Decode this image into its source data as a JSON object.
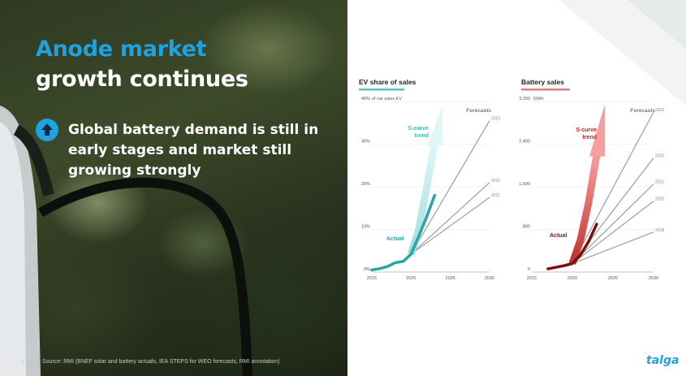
{
  "slide": {
    "title_line1": "Anode market",
    "title_line2": "growth continues",
    "bullet_text": "Global battery demand is still in early stages and market still growing strongly",
    "page_number": "4",
    "source": "Source: RMI (BNEF solar and battery actuals, IEA STEPS for WEO forecasts, RMI annotation)",
    "logo": "talga",
    "colors": {
      "accent": "#1fa2e0",
      "ev": "#2aa5a5",
      "battery": "#8b1a1a",
      "forecast": "#9a9a9a"
    }
  },
  "chart_data": [
    {
      "type": "line",
      "title": "EV share of sales",
      "unit_label": "of car sales EV",
      "x_ticks": [
        "2015",
        "2020",
        "2025",
        "2030"
      ],
      "y_ticks": [
        "0%",
        "10%",
        "20%",
        "30%",
        "40%"
      ],
      "xlim": [
        2015,
        2030
      ],
      "ylim": [
        0,
        40
      ],
      "actual_label": "Actual",
      "scurve_label": "S-curve trend",
      "forecasts_label": "Forecasts",
      "actual": {
        "x": [
          2015,
          2016,
          2017,
          2018,
          2019,
          2020,
          2021,
          2022,
          2023
        ],
        "y": [
          0.5,
          0.8,
          1.3,
          2.2,
          2.5,
          4.2,
          8.5,
          13,
          18
        ]
      },
      "scurve": {
        "x": [
          2020,
          2021,
          2022,
          2023,
          2024
        ],
        "y": [
          4.2,
          10,
          20,
          30,
          39
        ]
      },
      "forecasts": [
        {
          "name": "2023",
          "x": [
            2020,
            2030
          ],
          "y": [
            4.2,
            35.5
          ]
        },
        {
          "name": "2022",
          "x": [
            2020,
            2030
          ],
          "y": [
            4.2,
            21
          ]
        },
        {
          "name": "2021",
          "x": [
            2020,
            2030
          ],
          "y": [
            4.2,
            17.5
          ]
        }
      ]
    },
    {
      "type": "line",
      "title": "Battery sales",
      "unit_label": "GWh",
      "x_ticks": [
        "2015",
        "2020",
        "2025",
        "2030"
      ],
      "y_ticks": [
        "0",
        "800",
        "1,600",
        "2,400",
        "3,200"
      ],
      "xlim": [
        2015,
        2030
      ],
      "ylim": [
        0,
        3200
      ],
      "actual_label": "Actual",
      "scurve_label": "S-curve trend",
      "forecasts_label": "Forecasts",
      "actual": {
        "x": [
          2017,
          2018,
          2019,
          2020,
          2021,
          2022,
          2023
        ],
        "y": [
          60,
          90,
          120,
          160,
          320,
          570,
          900
        ]
      },
      "scurve": {
        "x": [
          2020,
          2021,
          2022,
          2023,
          2024
        ],
        "y": [
          160,
          600,
          1300,
          2200,
          3150
        ]
      },
      "forecasts": [
        {
          "name": "2023",
          "x": [
            2020,
            2030
          ],
          "y": [
            160,
            3000
          ]
        },
        {
          "name": "2022",
          "x": [
            2020,
            2030
          ],
          "y": [
            160,
            2140
          ]
        },
        {
          "name": "2021",
          "x": [
            2020,
            2030
          ],
          "y": [
            160,
            1650
          ]
        },
        {
          "name": "2020",
          "x": [
            2020,
            2030
          ],
          "y": [
            160,
            1330
          ]
        },
        {
          "name": "2018",
          "x": [
            2020,
            2030
          ],
          "y": [
            160,
            750
          ]
        }
      ]
    }
  ]
}
